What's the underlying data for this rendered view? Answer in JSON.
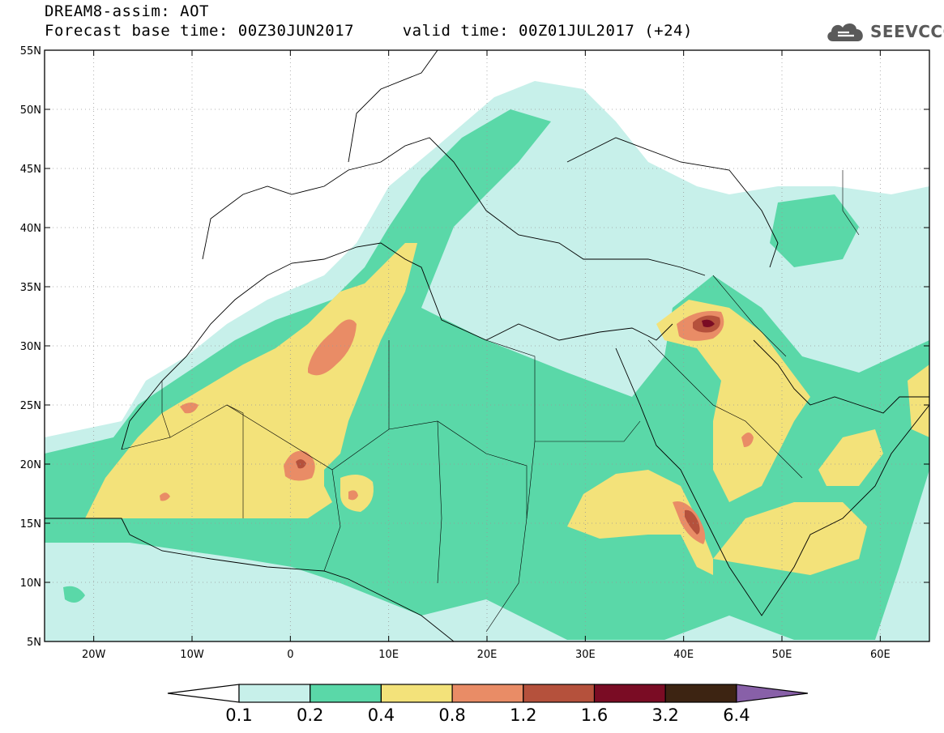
{
  "title": {
    "line1": "DREAM8-assim: AOT",
    "line2": "Forecast base time: 00Z30JUN2017     valid time: 00Z01JUL2017 (+24)"
  },
  "logo": {
    "text": "SEEVCCC",
    "icon": "cloud-icon"
  },
  "map": {
    "lon_range": [
      -25,
      65
    ],
    "lat_range": [
      5,
      55
    ],
    "lat_ticks": [
      "5N",
      "10N",
      "15N",
      "20N",
      "25N",
      "30N",
      "35N",
      "40N",
      "45N",
      "50N",
      "55N"
    ],
    "lon_ticks": [
      "20W",
      "10W",
      "0",
      "10E",
      "20E",
      "30E",
      "40E",
      "50E",
      "60E"
    ],
    "grid": true
  },
  "colorbar": {
    "labels": [
      "0.1",
      "0.2",
      "0.4",
      "0.8",
      "1.2",
      "1.6",
      "3.2",
      "6.4"
    ],
    "colors": [
      "#ffffff",
      "#c7f0ea",
      "#5ad8a8",
      "#f3e27a",
      "#e98c66",
      "#b5513c",
      "#7a0c24",
      "#3d2412",
      "#8860a8"
    ]
  },
  "colors": {
    "c01": "#c7f0ea",
    "c02": "#5ad8a8",
    "c04": "#f3e27a",
    "c08": "#e98c66",
    "c12": "#b5513c",
    "c16": "#7a0c24",
    "c32": "#3d2412"
  }
}
